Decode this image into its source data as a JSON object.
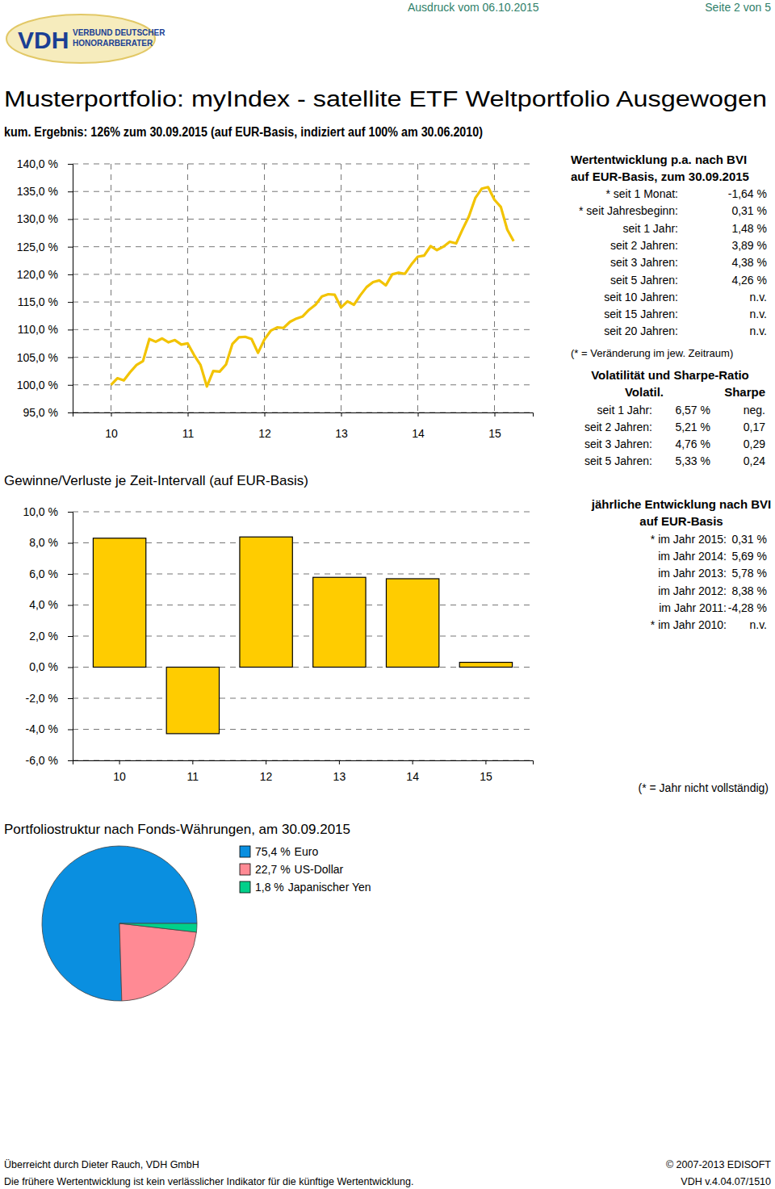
{
  "page": {
    "header": {
      "printed": "Ausdruck vom 06.10.2015",
      "page": "Seite 2 von 5"
    },
    "logo": {
      "abbr": "VDH",
      "line1": "VERBUND DEUTSCHER",
      "line2": "HONORARBERATER"
    },
    "title": "Musterportfolio: myIndex - satellite ETF Weltportfolio Ausgewogen",
    "performance": {
      "title": [
        "Wertentwicklung p.a. nach BVI",
        "auf EUR-Basis, zum 30.09.2015"
      ],
      "rows": [
        [
          "* seit 1 Monat:",
          "-1,64 %"
        ],
        [
          "* seit Jahresbeginn:",
          "0,31 %"
        ],
        [
          "seit 1 Jahr:",
          "1,48 %"
        ],
        [
          "seit 2 Jahren:",
          "3,89 %"
        ],
        [
          "seit 3 Jahren:",
          "4,38 %"
        ],
        [
          "seit 5 Jahren:",
          "4,26 %"
        ],
        [
          "seit 10 Jahren:",
          "n.v."
        ],
        [
          "seit 15 Jahren:",
          "n.v."
        ],
        [
          "seit 20 Jahren:",
          "n.v."
        ]
      ],
      "note": "(* = Veränderung im jew. Zeitraum)"
    },
    "volatility": {
      "title": "Volatilität und Sharpe-Ratio",
      "headers": [
        "Volatil.",
        "Sharpe"
      ],
      "rows": [
        [
          "seit 1 Jahr:",
          "6,57 %",
          "neg."
        ],
        [
          "seit 2 Jahren:",
          "5,21 %",
          "0,17"
        ],
        [
          "seit 3 Jahren:",
          "4,76 %",
          "0,29"
        ],
        [
          "seit 5 Jahren:",
          "5,33 %",
          "0,24"
        ]
      ]
    },
    "annual": {
      "title": [
        "jährliche Entwicklung nach BVI",
        "auf EUR-Basis"
      ],
      "rows": [
        [
          "* im Jahr 2015:",
          "0,31 %"
        ],
        [
          "im Jahr 2014:",
          "5,69 %"
        ],
        [
          "im Jahr 2013:",
          "5,78 %"
        ],
        [
          "im Jahr 2012:",
          "8,38 %"
        ],
        [
          "im Jahr 2011:",
          "-4,28 %"
        ],
        [
          "* im Jahr 2010:",
          "n.v."
        ]
      ],
      "note": "(* = Jahr nicht vollständig)"
    },
    "footer": {
      "left": [
        "Überreicht durch Dieter Rauch, VDH GmbH",
        "Die frühere Wertentwicklung ist kein verlässlicher Indikator für die künftige Wertentwicklung."
      ],
      "right": [
        "© 2007-2013 EDISOFT",
        "VDH v.4.04.07/1510"
      ]
    }
  },
  "chart_data": [
    {
      "type": "line",
      "title": "kum. Ergebnis: 126% zum 30.09.2015 (auf EUR-Basis, indiziert auf 100% am 30.06.2010)",
      "x": [
        2010.5,
        2010.583,
        2010.667,
        2010.75,
        2010.833,
        2010.917,
        2011,
        2011.083,
        2011.167,
        2011.25,
        2011.333,
        2011.417,
        2011.5,
        2011.583,
        2011.667,
        2011.75,
        2011.833,
        2011.917,
        2012,
        2012.083,
        2012.167,
        2012.25,
        2012.333,
        2012.417,
        2012.5,
        2012.583,
        2012.667,
        2012.75,
        2012.833,
        2012.917,
        2013,
        2013.083,
        2013.167,
        2013.25,
        2013.333,
        2013.417,
        2013.5,
        2013.583,
        2013.667,
        2013.75,
        2013.833,
        2013.917,
        2014,
        2014.083,
        2014.167,
        2014.25,
        2014.333,
        2014.417,
        2014.5,
        2014.583,
        2014.667,
        2014.75,
        2014.833,
        2014.917,
        2015,
        2015.083,
        2015.167,
        2015.25,
        2015.333,
        2015.417,
        2015.5,
        2015.583,
        2015.667,
        2015.75
      ],
      "values": [
        100.0,
        101.2,
        100.8,
        102.3,
        103.6,
        104.3,
        108.3,
        107.8,
        108.4,
        107.7,
        108.1,
        107.3,
        107.5,
        105.4,
        103.6,
        99.7,
        102.5,
        102.4,
        103.7,
        107.4,
        108.6,
        108.7,
        108.3,
        105.8,
        108.2,
        109.8,
        110.4,
        110.3,
        111.4,
        112.0,
        112.4,
        113.6,
        114.5,
        116.0,
        116.4,
        116.3,
        114.0,
        115.1,
        114.5,
        116.2,
        117.7,
        118.6,
        118.9,
        118.0,
        120.0,
        120.3,
        120.1,
        121.8,
        123.2,
        123.4,
        125.1,
        124.4,
        125.0,
        125.9,
        125.6,
        128.1,
        130.5,
        133.8,
        135.5,
        135.8,
        133.5,
        132.2,
        128.1,
        126.0
      ],
      "color": "#f2c300",
      "xlim": [
        2010,
        2016
      ],
      "xticks": [
        {
          "value": 2010.5,
          "label": "10"
        },
        {
          "value": 2011.5,
          "label": "11"
        },
        {
          "value": 2012.5,
          "label": "12"
        },
        {
          "value": 2013.5,
          "label": "13"
        },
        {
          "value": 2014.5,
          "label": "14"
        },
        {
          "value": 2015.5,
          "label": "15"
        }
      ],
      "ylim": [
        95,
        140
      ],
      "yticks": [
        {
          "value": 95,
          "label": "95,0 %"
        },
        {
          "value": 100,
          "label": "100,0 %"
        },
        {
          "value": 105,
          "label": "105,0 %"
        },
        {
          "value": 110,
          "label": "110,0 %"
        },
        {
          "value": 115,
          "label": "115,0 %"
        },
        {
          "value": 120,
          "label": "120,0 %"
        },
        {
          "value": 125,
          "label": "125,0 %"
        },
        {
          "value": 130,
          "label": "130,0 %"
        },
        {
          "value": 135,
          "label": "135,0 %"
        },
        {
          "value": 140,
          "label": "140,0 %"
        }
      ],
      "grid": true
    },
    {
      "type": "bar",
      "title": "Gewinne/Verluste je Zeit-Intervall (auf EUR-Basis)",
      "categories": [
        "10",
        "11",
        "12",
        "13",
        "14",
        "15"
      ],
      "values": [
        8.3,
        -4.28,
        8.38,
        5.78,
        5.69,
        0.31
      ],
      "color": "#ffcc00",
      "ylim": [
        -6,
        10
      ],
      "yticks": [
        {
          "value": -6,
          "label": "-6,0 %"
        },
        {
          "value": -4,
          "label": "-4,0 %"
        },
        {
          "value": -2,
          "label": "-2,0 %"
        },
        {
          "value": 0,
          "label": "0,0 %"
        },
        {
          "value": 2,
          "label": "2,0 %"
        },
        {
          "value": 4,
          "label": "4,0 %"
        },
        {
          "value": 6,
          "label": "6,0 %"
        },
        {
          "value": 8,
          "label": "8,0 %"
        },
        {
          "value": 10,
          "label": "10,0 %"
        }
      ],
      "grid": true
    },
    {
      "type": "pie",
      "title": "Portfoliostruktur nach Fonds-Währungen, am 30.09.2015",
      "categories": [
        "Euro",
        "US-Dollar",
        "Japanischer Yen"
      ],
      "values": [
        75.4,
        22.7,
        1.8
      ],
      "value_labels": [
        "75,4 %",
        "22,7 %",
        "1,8 %"
      ],
      "colors": [
        "#0a8fe0",
        "#ff8a94",
        "#00d08a"
      ],
      "legend": "right"
    }
  ]
}
